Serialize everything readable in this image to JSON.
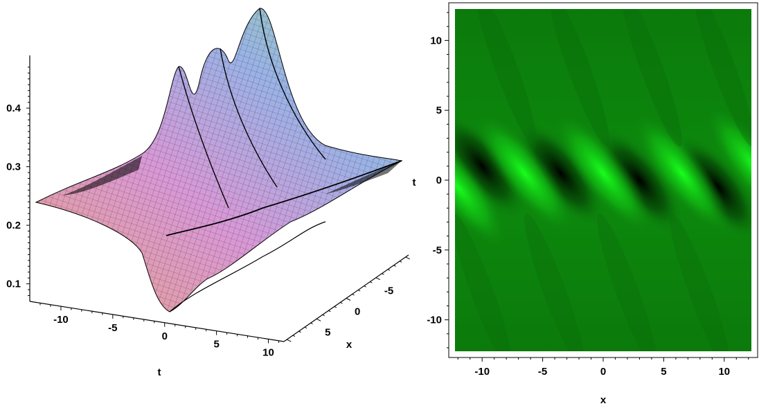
{
  "chart_data": [
    {
      "type": "surface",
      "xlabel": "t",
      "ylabel": "x",
      "xticks": [
        "-10",
        "-5",
        "0",
        "5",
        "10"
      ],
      "yticks": [
        "5",
        "0",
        "-5"
      ],
      "zticks": [
        "0.1",
        "0.2",
        "0.3",
        "0.4"
      ],
      "zlim": [
        0.07,
        0.49
      ],
      "colors": [
        "#e7a08a",
        "#d898d6",
        "#9ab2e6",
        "#92d6a4"
      ]
    },
    {
      "type": "heatmap",
      "xlabel": "x",
      "ylabel": "t",
      "xlim": [
        -12.3,
        12.3
      ],
      "ylim": [
        -12.3,
        12.3
      ],
      "xticks": [
        "-10",
        "-5",
        "0",
        "5",
        "10"
      ],
      "yticks": [
        "10",
        "5",
        "0",
        "-5",
        "-10"
      ],
      "colors": [
        "#000000",
        "#0a7d0a",
        "#16ff1a"
      ]
    }
  ]
}
